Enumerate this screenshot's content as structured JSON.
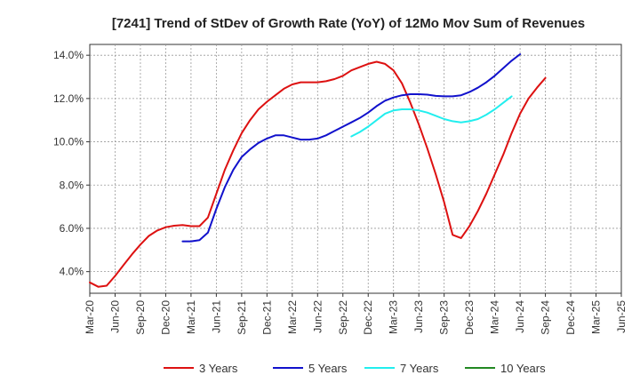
{
  "chart_data": {
    "type": "line",
    "title": "[7241]  Trend of StDev of Growth Rate (YoY) of 12Mo Mov Sum of Revenues",
    "xlabel": "",
    "ylabel": "",
    "ylim": [
      3.0,
      14.5
    ],
    "yticks": [
      4.0,
      6.0,
      8.0,
      10.0,
      12.0,
      14.0
    ],
    "ytick_labels": [
      "4.0%",
      "6.0%",
      "8.0%",
      "10.0%",
      "12.0%",
      "14.0%"
    ],
    "xlim": [
      0,
      63
    ],
    "xticks": [
      0,
      3,
      6,
      9,
      12,
      15,
      18,
      21,
      24,
      27,
      30,
      33,
      36,
      39,
      42,
      45,
      48,
      51,
      54,
      57,
      60,
      63
    ],
    "xtick_labels": [
      "Mar-20",
      "Jun-20",
      "Sep-20",
      "Dec-20",
      "Mar-21",
      "Jun-21",
      "Sep-21",
      "Dec-21",
      "Mar-22",
      "Jun-22",
      "Sep-22",
      "Dec-22",
      "Mar-23",
      "Jun-23",
      "Sep-23",
      "Dec-23",
      "Mar-24",
      "Jun-24",
      "Sep-24",
      "Dec-24",
      "Mar-25",
      "Jun-25"
    ],
    "grid": true,
    "legend_position": "bottom",
    "series": [
      {
        "name": "3 Years",
        "color": "#dd1111",
        "points": [
          [
            0,
            3.5
          ],
          [
            1,
            3.3
          ],
          [
            2,
            3.35
          ],
          [
            3,
            3.8
          ],
          [
            4,
            4.3
          ],
          [
            5,
            4.8
          ],
          [
            6,
            5.25
          ],
          [
            7,
            5.65
          ],
          [
            8,
            5.9
          ],
          [
            9,
            6.05
          ],
          [
            10,
            6.12
          ],
          [
            11,
            6.15
          ],
          [
            12,
            6.1
          ],
          [
            13,
            6.1
          ],
          [
            14,
            6.5
          ],
          [
            15,
            7.6
          ],
          [
            16,
            8.7
          ],
          [
            17,
            9.6
          ],
          [
            18,
            10.4
          ],
          [
            19,
            11.0
          ],
          [
            20,
            11.5
          ],
          [
            21,
            11.85
          ],
          [
            22,
            12.15
          ],
          [
            23,
            12.45
          ],
          [
            24,
            12.65
          ],
          [
            25,
            12.75
          ],
          [
            26,
            12.75
          ],
          [
            27,
            12.75
          ],
          [
            28,
            12.8
          ],
          [
            29,
            12.9
          ],
          [
            30,
            13.05
          ],
          [
            31,
            13.3
          ],
          [
            32,
            13.45
          ],
          [
            33,
            13.6
          ],
          [
            34,
            13.7
          ],
          [
            35,
            13.6
          ],
          [
            36,
            13.3
          ],
          [
            37,
            12.7
          ],
          [
            38,
            11.8
          ],
          [
            39,
            10.8
          ],
          [
            40,
            9.7
          ],
          [
            41,
            8.5
          ],
          [
            42,
            7.2
          ],
          [
            43,
            5.7
          ],
          [
            44,
            5.55
          ],
          [
            45,
            6.1
          ],
          [
            46,
            6.8
          ],
          [
            47,
            7.6
          ],
          [
            48,
            8.5
          ],
          [
            49,
            9.4
          ],
          [
            50,
            10.4
          ],
          [
            51,
            11.3
          ],
          [
            52,
            12.0
          ],
          [
            53,
            12.5
          ],
          [
            54,
            12.95
          ]
        ]
      },
      {
        "name": "5 Years",
        "color": "#1111cc",
        "points": [
          [
            11,
            5.4
          ],
          [
            12,
            5.4
          ],
          [
            13,
            5.45
          ],
          [
            14,
            5.8
          ],
          [
            15,
            6.9
          ],
          [
            16,
            7.9
          ],
          [
            17,
            8.7
          ],
          [
            18,
            9.3
          ],
          [
            19,
            9.65
          ],
          [
            20,
            9.95
          ],
          [
            21,
            10.15
          ],
          [
            22,
            10.3
          ],
          [
            23,
            10.3
          ],
          [
            24,
            10.2
          ],
          [
            25,
            10.1
          ],
          [
            26,
            10.1
          ],
          [
            27,
            10.15
          ],
          [
            28,
            10.3
          ],
          [
            29,
            10.5
          ],
          [
            30,
            10.7
          ],
          [
            31,
            10.9
          ],
          [
            32,
            11.1
          ],
          [
            33,
            11.35
          ],
          [
            34,
            11.65
          ],
          [
            35,
            11.9
          ],
          [
            36,
            12.05
          ],
          [
            37,
            12.15
          ],
          [
            38,
            12.2
          ],
          [
            39,
            12.2
          ],
          [
            40,
            12.18
          ],
          [
            41,
            12.12
          ],
          [
            42,
            12.1
          ],
          [
            43,
            12.1
          ],
          [
            44,
            12.15
          ],
          [
            45,
            12.3
          ],
          [
            46,
            12.5
          ],
          [
            47,
            12.75
          ],
          [
            48,
            13.05
          ],
          [
            49,
            13.4
          ],
          [
            50,
            13.75
          ],
          [
            51,
            14.05
          ]
        ]
      },
      {
        "name": "7 Years",
        "color": "#22eeee",
        "points": [
          [
            31,
            10.25
          ],
          [
            32,
            10.45
          ],
          [
            33,
            10.7
          ],
          [
            34,
            11.0
          ],
          [
            35,
            11.3
          ],
          [
            36,
            11.45
          ],
          [
            37,
            11.5
          ],
          [
            38,
            11.5
          ],
          [
            39,
            11.45
          ],
          [
            40,
            11.35
          ],
          [
            41,
            11.2
          ],
          [
            42,
            11.05
          ],
          [
            43,
            10.95
          ],
          [
            44,
            10.9
          ],
          [
            45,
            10.95
          ],
          [
            46,
            11.05
          ],
          [
            47,
            11.25
          ],
          [
            48,
            11.5
          ],
          [
            49,
            11.8
          ],
          [
            50,
            12.1
          ]
        ]
      },
      {
        "name": "10 Years",
        "color": "#228822",
        "points": []
      }
    ]
  }
}
